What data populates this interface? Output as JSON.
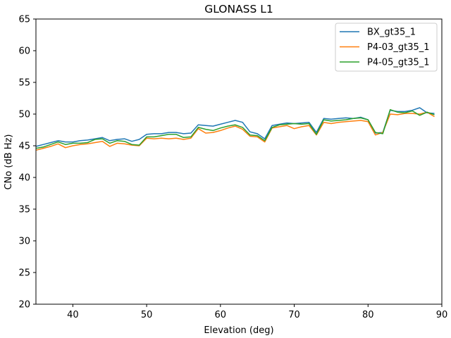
{
  "chart_data": {
    "type": "line",
    "title": "GLONASS L1",
    "xlabel": "Elevation (deg)",
    "ylabel": "CNo (dB Hz)",
    "xlim": [
      35,
      90
    ],
    "ylim": [
      20,
      65
    ],
    "xticks": [
      40,
      50,
      60,
      70,
      80,
      90
    ],
    "yticks": [
      20,
      25,
      30,
      35,
      40,
      45,
      50,
      55,
      60,
      65
    ],
    "grid": false,
    "legend_position": "upper right",
    "x": [
      35,
      36,
      37,
      38,
      39,
      40,
      41,
      42,
      43,
      44,
      45,
      46,
      47,
      48,
      49,
      50,
      51,
      52,
      53,
      54,
      55,
      56,
      57,
      58,
      59,
      60,
      61,
      62,
      63,
      64,
      65,
      66,
      67,
      68,
      69,
      70,
      71,
      72,
      73,
      74,
      75,
      76,
      77,
      78,
      79,
      80,
      81,
      82,
      83,
      84,
      85,
      86,
      87,
      88,
      89
    ],
    "series": [
      {
        "name": "BX_gt35_1",
        "color": "#1f77b4",
        "values": [
          44.9,
          45.2,
          45.5,
          45.8,
          45.6,
          45.6,
          45.8,
          45.9,
          46.1,
          46.3,
          45.8,
          46.0,
          46.1,
          45.7,
          46.0,
          46.8,
          46.9,
          46.9,
          47.1,
          47.1,
          46.9,
          47.0,
          48.3,
          48.2,
          48.1,
          48.4,
          48.7,
          49.0,
          48.7,
          47.2,
          46.9,
          46.1,
          48.2,
          48.4,
          48.6,
          48.5,
          48.6,
          48.7,
          47.1,
          49.3,
          49.2,
          49.3,
          49.4,
          49.3,
          49.5,
          49.1,
          47.0,
          47.1,
          50.6,
          50.4,
          50.4,
          50.6,
          51.0,
          50.2,
          50.1
        ]
      },
      {
        "name": "P4-03_gt35_1",
        "color": "#ff7f0e",
        "values": [
          44.3,
          44.6,
          44.9,
          45.3,
          44.7,
          45.0,
          45.2,
          45.3,
          45.5,
          45.7,
          44.9,
          45.4,
          45.3,
          45.1,
          45.0,
          46.2,
          46.1,
          46.2,
          46.1,
          46.2,
          46.0,
          46.2,
          47.7,
          47.0,
          47.1,
          47.4,
          47.8,
          48.1,
          47.6,
          46.5,
          46.4,
          45.6,
          47.8,
          48.0,
          48.2,
          47.7,
          48.0,
          48.2,
          46.7,
          48.7,
          48.5,
          48.7,
          48.8,
          48.9,
          49.0,
          48.8,
          46.7,
          47.1,
          50.0,
          49.9,
          50.1,
          50.1,
          50.0,
          50.3,
          49.6
        ]
      },
      {
        "name": "P4-05_gt35_1",
        "color": "#2ca02c",
        "values": [
          44.6,
          44.8,
          45.2,
          45.6,
          45.2,
          45.4,
          45.4,
          45.5,
          46.0,
          46.1,
          45.4,
          45.8,
          45.7,
          45.2,
          45.1,
          46.4,
          46.4,
          46.6,
          46.8,
          46.8,
          46.3,
          46.4,
          47.9,
          47.6,
          47.4,
          47.8,
          48.1,
          48.3,
          47.9,
          46.7,
          46.6,
          45.8,
          47.9,
          48.3,
          48.4,
          48.5,
          48.4,
          48.5,
          46.8,
          49.1,
          48.9,
          49.0,
          49.1,
          49.3,
          49.4,
          49.1,
          47.1,
          46.9,
          50.7,
          50.3,
          50.2,
          50.5,
          49.8,
          50.3,
          49.9
        ]
      }
    ]
  }
}
